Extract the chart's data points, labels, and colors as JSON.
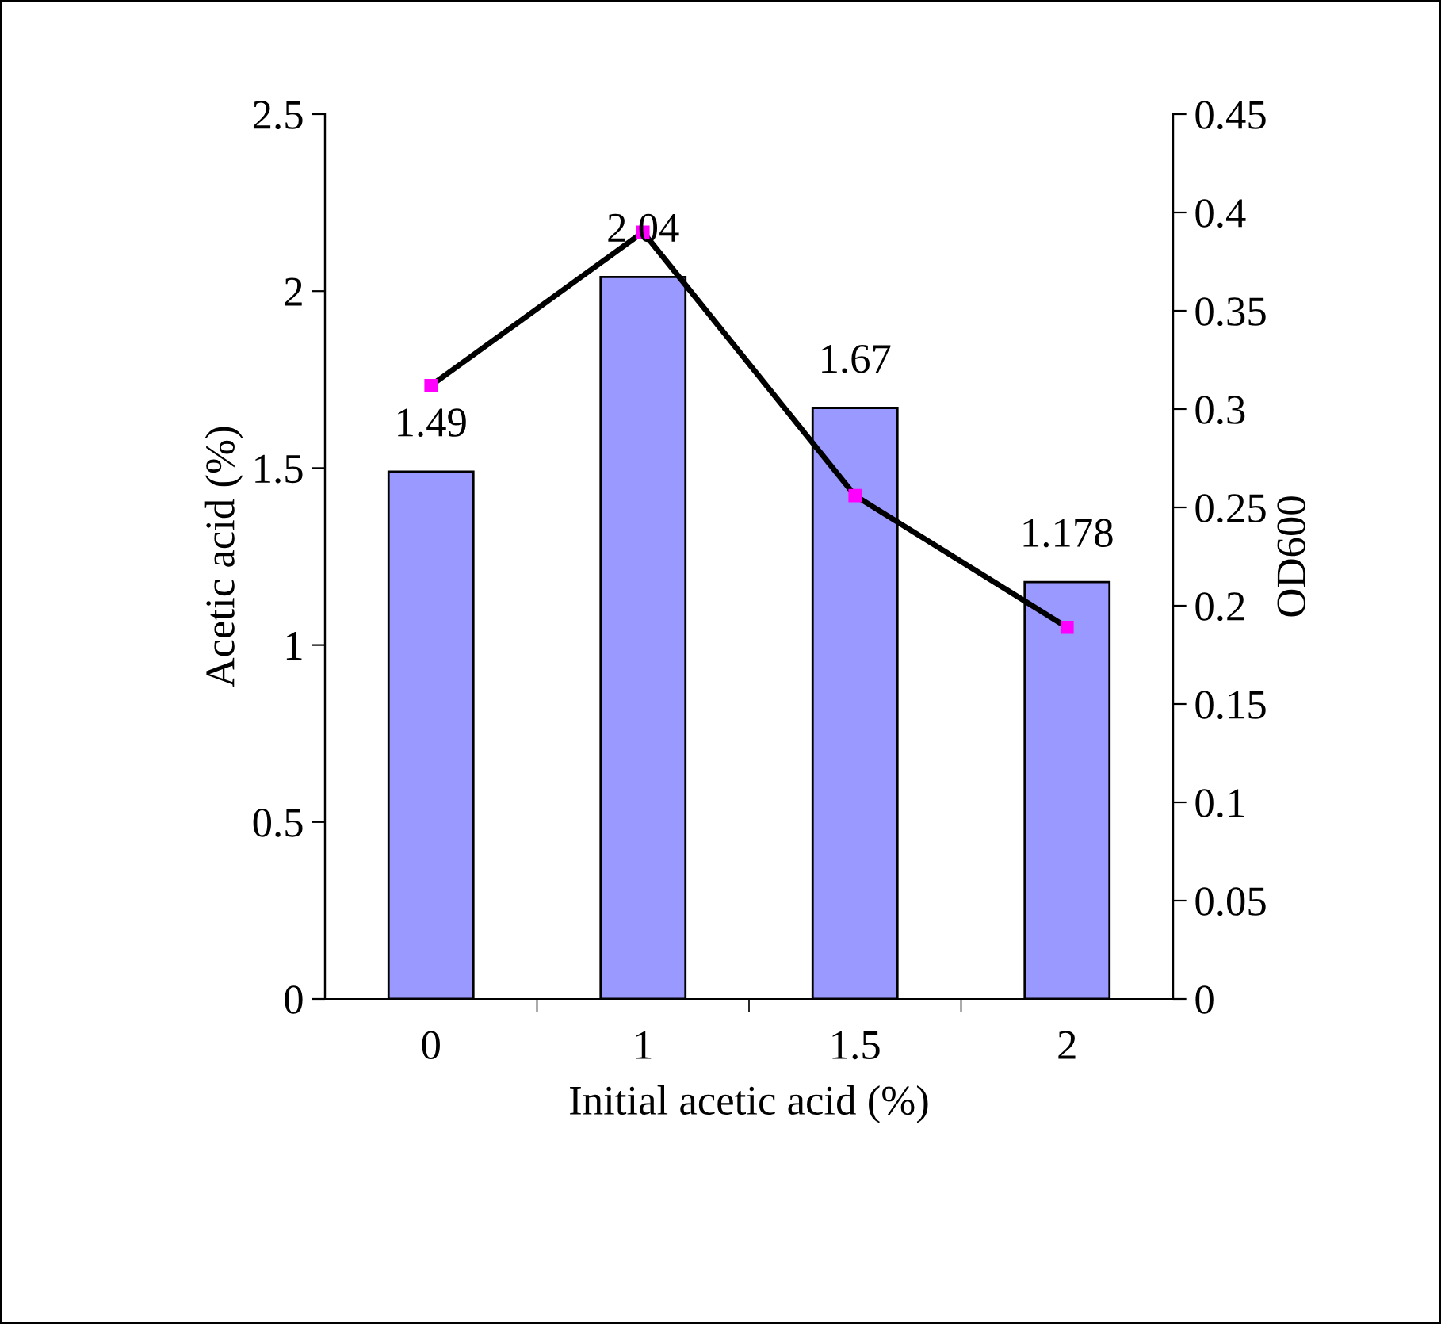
{
  "chart_data": {
    "type": "bar",
    "xlabel": "Initial acetic acid (%)",
    "ylabel": "Acetic acid (%)",
    "y2label": "OD600",
    "categories": [
      "0",
      "1",
      "1.5",
      "2"
    ],
    "series": [
      {
        "color": "#9999ff",
        "values": [
          1.49,
          2.04,
          1.67,
          1.178
        ],
        "value_labels": [
          "1.49",
          "2.04",
          "1.67",
          "1.178"
        ]
      },
      {
        "type": "line",
        "axis": "y2",
        "color": "#000000",
        "marker": "square",
        "values": [
          0.312,
          0.39,
          0.256,
          0.189
        ]
      }
    ],
    "ylim": [
      0,
      2.5
    ],
    "yticks": [
      0,
      0.5,
      1,
      1.5,
      2,
      2.5
    ],
    "y2lim": [
      0,
      0.45
    ],
    "y2ticks": [
      0,
      0.05,
      0.1,
      0.15,
      0.2,
      0.25,
      0.3,
      0.35,
      0.4,
      0.45
    ],
    "grid": false
  }
}
